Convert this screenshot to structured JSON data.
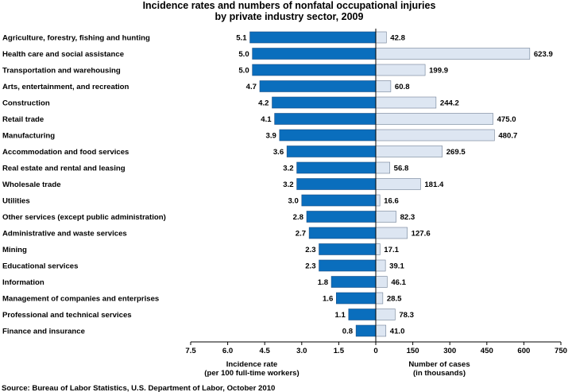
{
  "chart_data": {
    "type": "bar",
    "title": "Incidence rates and numbers of nonfatal occupational injuries",
    "subtitle": "by private industry sector, 2009",
    "categories": [
      "Agriculture, forestry, fishing and hunting",
      "Health care and social assistance",
      "Transportation and warehousing",
      "Arts, entertainment, and recreation",
      "Construction",
      "Retail trade",
      "Manufacturing",
      "Accommodation and food services",
      "Real estate and rental and leasing",
      "Wholesale trade",
      "Utilities",
      "Other services (except public administration)",
      "Administrative and waste services",
      "Mining",
      "Educational services",
      "Information",
      "Management of companies and enterprises",
      "Professional and technical services",
      "Finance and insurance"
    ],
    "series": [
      {
        "values": [
          5.1,
          5.0,
          5.0,
          4.7,
          4.2,
          4.1,
          3.9,
          3.6,
          3.2,
          3.2,
          3.0,
          2.8,
          2.7,
          2.3,
          2.3,
          1.8,
          1.6,
          1.1,
          0.8
        ],
        "value_labels": [
          "5.1",
          "5.0",
          "5.0",
          "4.7",
          "4.2",
          "4.1",
          "3.9",
          "3.6",
          "3.2",
          "3.2",
          "3.0",
          "2.8",
          "2.7",
          "2.3",
          "2.3",
          "1.8",
          "1.6",
          "1.1",
          "0.8"
        ],
        "color": "#0a6ebd",
        "xlabel_line1": "Incidence rate",
        "xlabel_line2": "(per 100 full-time workers)",
        "xlim": [
          7.5,
          0
        ],
        "ticks": [
          "7.5",
          "6.0",
          "4.5",
          "3.0",
          "1.5",
          "0"
        ],
        "tick_values": [
          7.5,
          6.0,
          4.5,
          3.0,
          1.5,
          0
        ]
      },
      {
        "values": [
          42.8,
          623.9,
          199.9,
          60.8,
          244.2,
          475.0,
          480.7,
          269.5,
          56.8,
          181.4,
          16.6,
          82.3,
          127.6,
          17.1,
          39.1,
          46.1,
          28.5,
          78.3,
          41.0
        ],
        "value_labels": [
          "42.8",
          "623.9",
          "199.9",
          "60.8",
          "244.2",
          "475.0",
          "480.7",
          "269.5",
          "56.8",
          "181.4",
          "16.6",
          "82.3",
          "127.6",
          "17.1",
          "39.1",
          "46.1",
          "28.5",
          "78.3",
          "41.0"
        ],
        "color": "#dde6f2",
        "xlabel_line1": "Number of cases",
        "xlabel_line2": "(in thousands)",
        "xlim": [
          0,
          750
        ],
        "ticks": [
          "0",
          "150",
          "300",
          "450",
          "600",
          "750"
        ],
        "tick_values": [
          0,
          150,
          300,
          450,
          600,
          750
        ]
      }
    ],
    "source": "Source:  Bureau of Labor Statistics, U.S. Department of Labor, October 2010",
    "grid": false,
    "legend": "none"
  }
}
